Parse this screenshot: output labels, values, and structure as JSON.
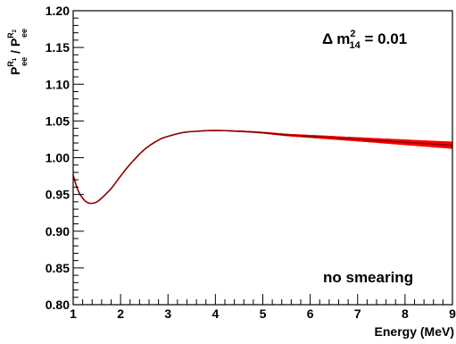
{
  "chart_data": {
    "type": "line",
    "title": "",
    "xlabel": "Energy (MeV)",
    "ylabel": "P_ee^{R1} / P_ee^{R2}",
    "ylabel_parts": {
      "p1": "P",
      "sup1": "R",
      "supsub1": "1",
      "sub1": "ee",
      "slash": " / ",
      "p2": "P",
      "sup2": "R",
      "supsub2": "2",
      "sub2": "ee"
    },
    "xlim": [
      1,
      9
    ],
    "ylim": [
      0.8,
      1.2
    ],
    "x_ticks": [
      "1",
      "2",
      "3",
      "4",
      "5",
      "6",
      "7",
      "8",
      "9"
    ],
    "y_ticks": [
      "0.80",
      "0.85",
      "0.90",
      "0.95",
      "1.00",
      "1.05",
      "1.10",
      "1.15",
      "1.20"
    ],
    "annotations": {
      "delta": {
        "delta_sym": "Δ",
        "m": "m",
        "sup": "2",
        "sub": "14",
        "rest": " = 0.01"
      },
      "smearing": "no smearing"
    },
    "grid": false,
    "legend": "none",
    "colors": {
      "band": "#ff0000",
      "central": "#8b0000"
    },
    "series": [
      {
        "x": [
          1.0,
          1.1,
          1.2,
          1.3,
          1.4,
          1.5,
          1.6,
          1.8,
          2.0,
          2.2,
          2.5,
          2.8,
          3.0,
          3.3,
          3.6,
          4.0,
          4.5,
          5.0,
          5.5,
          6.0,
          6.5,
          7.0,
          7.5,
          8.0,
          8.5,
          9.0
        ],
        "y": [
          0.976,
          0.956,
          0.945,
          0.939,
          0.938,
          0.94,
          0.945,
          0.958,
          0.975,
          0.991,
          1.011,
          1.024,
          1.029,
          1.034,
          1.036,
          1.037,
          1.036,
          1.034,
          1.031,
          1.029,
          1.027,
          1.025,
          1.023,
          1.021,
          1.019,
          1.017
        ],
        "spread": [
          0,
          0,
          0,
          0,
          0,
          0,
          0,
          0,
          0,
          0,
          0,
          0,
          0,
          0,
          0,
          0,
          0.0003,
          0.0006,
          0.001,
          0.0014,
          0.0018,
          0.0022,
          0.0027,
          0.0032,
          0.0037,
          0.0042
        ]
      }
    ]
  }
}
